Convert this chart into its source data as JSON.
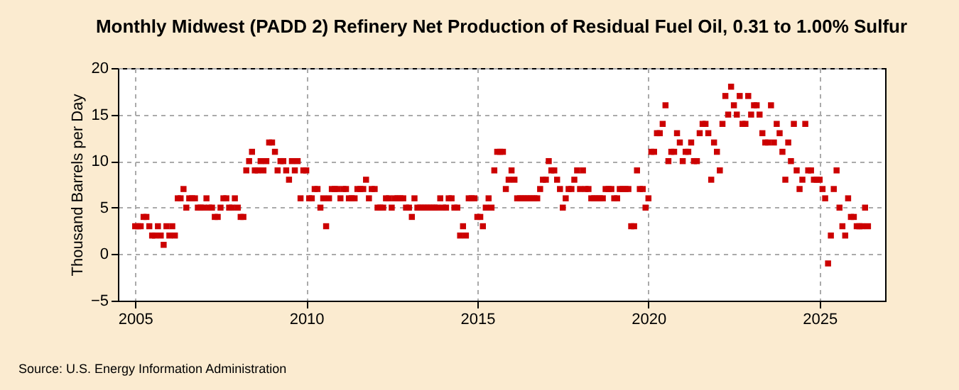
{
  "chart_data": {
    "type": "scatter",
    "title": "Monthly Midwest (PADD 2) Refinery Net Production of Residual Fuel Oil, 0.31 to 1.00% Sulfur",
    "ylabel": "Thousand Barrels per Day",
    "annotations": [
      "Source: U.S. Energy Information Administration"
    ],
    "x": [
      "2005-01",
      "2005-02",
      "2005-03",
      "2005-04",
      "2005-05",
      "2005-06",
      "2005-07",
      "2005-08",
      "2005-09",
      "2005-10",
      "2005-11",
      "2005-12",
      "2006-01",
      "2006-02",
      "2006-03",
      "2006-04",
      "2006-05",
      "2006-06",
      "2006-07",
      "2006-08",
      "2006-09",
      "2006-10",
      "2006-11",
      "2006-12",
      "2007-01",
      "2007-02",
      "2007-03",
      "2007-04",
      "2007-05",
      "2007-06",
      "2007-07",
      "2007-08",
      "2007-09",
      "2007-10",
      "2007-11",
      "2007-12",
      "2008-01",
      "2008-02",
      "2008-03",
      "2008-04",
      "2008-05",
      "2008-06",
      "2008-07",
      "2008-08",
      "2008-09",
      "2008-10",
      "2008-11",
      "2008-12",
      "2009-01",
      "2009-02",
      "2009-03",
      "2009-04",
      "2009-05",
      "2009-06",
      "2009-07",
      "2009-08",
      "2009-09",
      "2009-10",
      "2009-11",
      "2009-12",
      "2010-01",
      "2010-02",
      "2010-03",
      "2010-04",
      "2010-05",
      "2010-06",
      "2010-07",
      "2010-08",
      "2010-09",
      "2010-10",
      "2010-11",
      "2010-12",
      "2011-01",
      "2011-02",
      "2011-03",
      "2011-04",
      "2011-05",
      "2011-06",
      "2011-07",
      "2011-08",
      "2011-09",
      "2011-10",
      "2011-11",
      "2011-12",
      "2012-01",
      "2012-02",
      "2012-03",
      "2012-04",
      "2012-05",
      "2012-06",
      "2012-07",
      "2012-08",
      "2012-09",
      "2012-10",
      "2012-11",
      "2012-12",
      "2013-01",
      "2013-02",
      "2013-03",
      "2013-04",
      "2013-05",
      "2013-06",
      "2013-07",
      "2013-08",
      "2013-09",
      "2013-10",
      "2013-11",
      "2013-12",
      "2014-01",
      "2014-02",
      "2014-03",
      "2014-04",
      "2014-05",
      "2014-06",
      "2014-07",
      "2014-08",
      "2014-09",
      "2014-10",
      "2014-11",
      "2014-12",
      "2015-01",
      "2015-02",
      "2015-03",
      "2015-04",
      "2015-05",
      "2015-06",
      "2015-07",
      "2015-08",
      "2015-09",
      "2015-10",
      "2015-11",
      "2015-12",
      "2016-01",
      "2016-02",
      "2016-03",
      "2016-04",
      "2016-05",
      "2016-06",
      "2016-07",
      "2016-08",
      "2016-09",
      "2016-10",
      "2016-11",
      "2016-12",
      "2017-01",
      "2017-02",
      "2017-03",
      "2017-04",
      "2017-05",
      "2017-06",
      "2017-07",
      "2017-08",
      "2017-09",
      "2017-10",
      "2017-11",
      "2017-12",
      "2018-01",
      "2018-02",
      "2018-03",
      "2018-04",
      "2018-05",
      "2018-06",
      "2018-07",
      "2018-08",
      "2018-09",
      "2018-10",
      "2018-11",
      "2018-12",
      "2019-01",
      "2019-02",
      "2019-03",
      "2019-04",
      "2019-05",
      "2019-06",
      "2019-07",
      "2019-08",
      "2019-09",
      "2019-10",
      "2019-11",
      "2019-12",
      "2020-01",
      "2020-02",
      "2020-03",
      "2020-04",
      "2020-05",
      "2020-06",
      "2020-07",
      "2020-08",
      "2020-09",
      "2020-10",
      "2020-11",
      "2020-12",
      "2021-01",
      "2021-02",
      "2021-03",
      "2021-04",
      "2021-05",
      "2021-06",
      "2021-07",
      "2021-08",
      "2021-09",
      "2021-10",
      "2021-11",
      "2021-12",
      "2022-01",
      "2022-02",
      "2022-03",
      "2022-04",
      "2022-05",
      "2022-06",
      "2022-07",
      "2022-08",
      "2022-09",
      "2022-10",
      "2022-11",
      "2022-12",
      "2023-01",
      "2023-02",
      "2023-03",
      "2023-04",
      "2023-05",
      "2023-06",
      "2023-07",
      "2023-08",
      "2023-09",
      "2023-10",
      "2023-11",
      "2023-12",
      "2024-01",
      "2024-02",
      "2024-03",
      "2024-04",
      "2024-05",
      "2024-06",
      "2024-07",
      "2024-08",
      "2024-09",
      "2024-10",
      "2024-11",
      "2024-12",
      "2025-01",
      "2025-02",
      "2025-03",
      "2025-04",
      "2025-05",
      "2025-06",
      "2025-07",
      "2025-08",
      "2025-09",
      "2025-10",
      "2025-11",
      "2025-12",
      "2026-01",
      "2026-02",
      "2026-03",
      "2026-04",
      "2026-05",
      "2026-06"
    ],
    "series": [
      {
        "color": "#cc0000",
        "values": [
          3,
          3,
          3,
          4,
          4,
          3,
          2,
          2,
          3,
          2,
          1,
          3,
          2,
          3,
          2,
          6,
          6,
          7,
          5,
          6,
          6,
          6,
          5,
          5,
          5,
          6,
          5,
          5,
          4,
          4,
          5,
          6,
          6,
          5,
          5,
          6,
          5,
          4,
          4,
          9,
          10,
          11,
          9,
          9,
          10,
          9,
          10,
          12,
          12,
          11,
          9,
          10,
          10,
          9,
          8,
          10,
          9,
          10,
          6,
          9,
          9,
          6,
          6,
          7,
          7,
          5,
          6,
          3,
          6,
          7,
          7,
          7,
          6,
          7,
          7,
          6,
          6,
          6,
          7,
          7,
          7,
          8,
          6,
          7,
          7,
          5,
          5,
          5,
          6,
          6,
          5,
          6,
          6,
          6,
          6,
          5,
          5,
          4,
          6,
          5,
          5,
          5,
          5,
          5,
          5,
          5,
          5,
          6,
          5,
          5,
          6,
          6,
          5,
          5,
          2,
          3,
          2,
          6,
          6,
          6,
          4,
          4,
          3,
          5,
          6,
          5,
          9,
          11,
          11,
          11,
          7,
          8,
          9,
          8,
          6,
          6,
          6,
          6,
          6,
          6,
          6,
          6,
          7,
          8,
          8,
          10,
          9,
          9,
          8,
          7,
          5,
          6,
          7,
          7,
          8,
          9,
          7,
          9,
          7,
          7,
          6,
          6,
          6,
          6,
          6,
          7,
          7,
          7,
          6,
          6,
          7,
          7,
          7,
          7,
          3,
          3,
          9,
          7,
          7,
          5,
          6,
          11,
          11,
          13,
          13,
          14,
          16,
          10,
          11,
          11,
          13,
          12,
          10,
          11,
          11,
          12,
          10,
          10,
          13,
          14,
          14,
          13,
          8,
          12,
          11,
          9,
          14,
          17,
          15,
          18,
          16,
          15,
          17,
          14,
          14,
          17,
          15,
          16,
          16,
          15,
          13,
          12,
          12,
          16,
          12,
          14,
          13,
          11,
          8,
          12,
          10,
          14,
          9,
          7,
          8,
          14,
          9,
          9,
          8,
          8,
          8,
          7,
          6,
          -1,
          2,
          7,
          9,
          5,
          3,
          2,
          6,
          4,
          4,
          3,
          3,
          3,
          5,
          3
        ]
      }
    ],
    "xlim": [
      "2004-07",
      "2026-12"
    ],
    "xticks": [
      "2005",
      "2010",
      "2015",
      "2020",
      "2025"
    ],
    "ylim": [
      -5,
      20
    ],
    "yticks": [
      -5,
      0,
      5,
      10,
      15,
      20
    ],
    "grid": true,
    "marker": "square"
  }
}
